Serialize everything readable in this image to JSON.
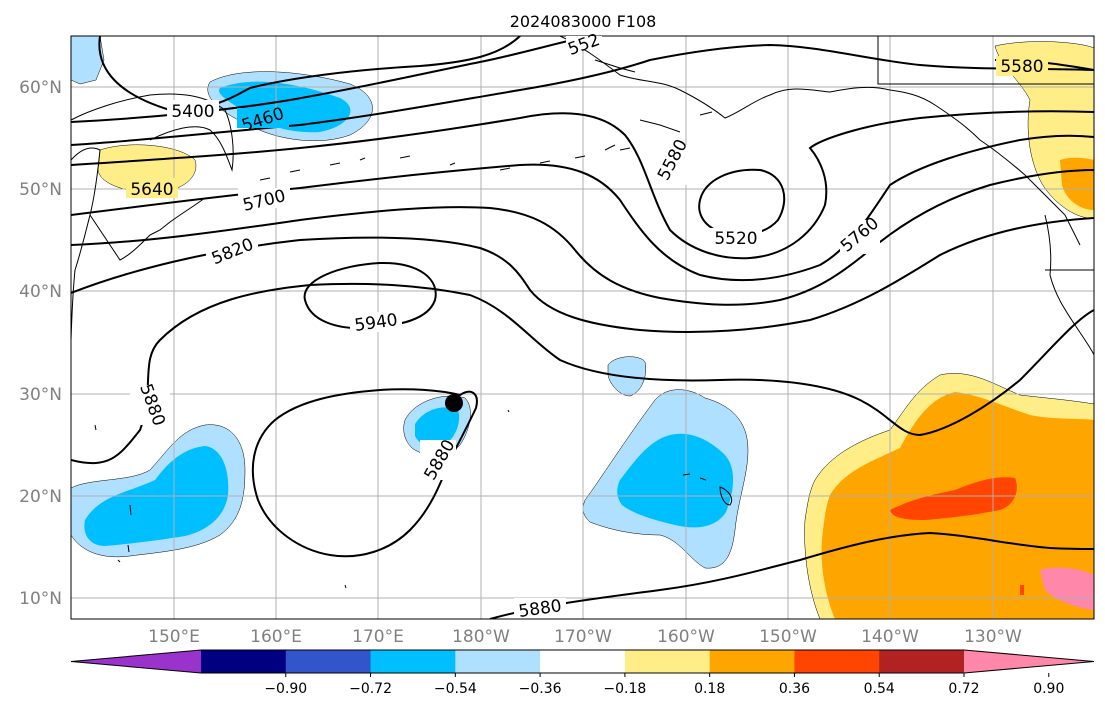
{
  "title": "2024083000 F108",
  "map": {
    "lat_ticks": [
      "60°N",
      "50°N",
      "40°N",
      "30°N",
      "20°N",
      "10°N"
    ],
    "lon_ticks": [
      "150°E",
      "160°E",
      "170°E",
      "180°W",
      "170°W",
      "160°W",
      "150°W",
      "140°W",
      "130°W"
    ],
    "contour_labels": [
      "5400",
      "5460",
      "5640",
      "5700",
      "5820",
      "5940",
      "5880",
      "5880",
      "5880",
      "5580",
      "5520",
      "5760",
      "5580",
      "552"
    ],
    "storm_marker": "storm-center-dot"
  },
  "colorbar": {
    "tick_labels": [
      "−0.90",
      "−0.72",
      "−0.54",
      "−0.36",
      "−0.18",
      "0.18",
      "0.36",
      "0.54",
      "0.72",
      "0.90"
    ],
    "colors": [
      "#9933cc",
      "#000080",
      "#3355cc",
      "#00bfff",
      "#b0e0ff",
      "#ffffff",
      "#ffee88",
      "#ffa500",
      "#ff4500",
      "#b22222",
      "#ff88aa"
    ]
  }
}
